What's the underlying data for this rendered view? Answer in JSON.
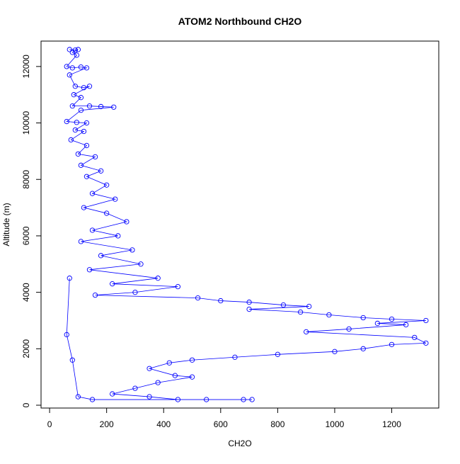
{
  "chart_data": {
    "type": "scatter",
    "title": "ATOM2 Northbound CH2O",
    "xlabel": "CH2O",
    "ylabel": "Altitude (m)",
    "xlim": [
      -30,
      1365
    ],
    "ylim": [
      -100,
      12900
    ],
    "x_ticks": [
      0,
      200,
      400,
      600,
      800,
      1000,
      1200
    ],
    "y_ticks": [
      0,
      2000,
      4000,
      6000,
      8000,
      10000,
      12000
    ],
    "grid": false,
    "legend": "none",
    "marker": "open-circle",
    "series_color": "#0000ff",
    "connecting_lines": true,
    "series": [
      {
        "profile": [
          [
            70,
            12600
          ],
          [
            90,
            12580
          ],
          [
            100,
            12600
          ],
          [
            80,
            12500
          ],
          [
            95,
            12400
          ],
          [
            60,
            12000
          ],
          [
            80,
            11950
          ],
          [
            110,
            11980
          ],
          [
            130,
            11950
          ],
          [
            70,
            11700
          ],
          [
            90,
            11300
          ],
          [
            120,
            11250
          ],
          [
            140,
            11300
          ],
          [
            85,
            11000
          ],
          [
            110,
            10900
          ],
          [
            80,
            10600
          ],
          [
            140,
            10600
          ],
          [
            180,
            10580
          ],
          [
            225,
            10560
          ],
          [
            110,
            10450
          ],
          [
            60,
            10050
          ],
          [
            95,
            10020
          ],
          [
            130,
            10000
          ],
          [
            90,
            9750
          ],
          [
            120,
            9700
          ],
          [
            75,
            9400
          ],
          [
            130,
            9200
          ],
          [
            100,
            8900
          ],
          [
            160,
            8800
          ],
          [
            110,
            8500
          ],
          [
            180,
            8300
          ],
          [
            130,
            8100
          ],
          [
            200,
            7800
          ],
          [
            150,
            7500
          ],
          [
            230,
            7300
          ],
          [
            120,
            7000
          ],
          [
            200,
            6800
          ],
          [
            270,
            6500
          ],
          [
            150,
            6200
          ],
          [
            240,
            6000
          ],
          [
            110,
            5800
          ],
          [
            290,
            5500
          ],
          [
            180,
            5300
          ],
          [
            320,
            5000
          ],
          [
            140,
            4800
          ],
          [
            380,
            4500
          ],
          [
            220,
            4300
          ],
          [
            450,
            4200
          ],
          [
            300,
            4000
          ],
          [
            160,
            3900
          ],
          [
            520,
            3800
          ],
          [
            600,
            3700
          ],
          [
            700,
            3650
          ],
          [
            820,
            3550
          ],
          [
            910,
            3500
          ],
          [
            700,
            3400
          ],
          [
            880,
            3300
          ],
          [
            980,
            3200
          ],
          [
            1100,
            3100
          ],
          [
            1200,
            3050
          ],
          [
            1320,
            3000
          ],
          [
            1150,
            2900
          ],
          [
            1250,
            2850
          ],
          [
            1050,
            2700
          ],
          [
            900,
            2600
          ],
          [
            1280,
            2400
          ],
          [
            1320,
            2200
          ],
          [
            1200,
            2150
          ],
          [
            1100,
            2000
          ],
          [
            1000,
            1900
          ],
          [
            800,
            1800
          ],
          [
            650,
            1700
          ],
          [
            500,
            1600
          ],
          [
            420,
            1500
          ],
          [
            350,
            1300
          ],
          [
            440,
            1050
          ],
          [
            500,
            1000
          ],
          [
            380,
            800
          ],
          [
            300,
            600
          ],
          [
            220,
            400
          ],
          [
            350,
            300
          ],
          [
            450,
            200
          ],
          [
            550,
            200
          ],
          [
            680,
            200
          ],
          [
            710,
            200
          ],
          [
            150,
            200
          ],
          [
            100,
            300
          ],
          [
            80,
            1600
          ],
          [
            60,
            2500
          ],
          [
            70,
            4500
          ]
        ]
      }
    ]
  }
}
